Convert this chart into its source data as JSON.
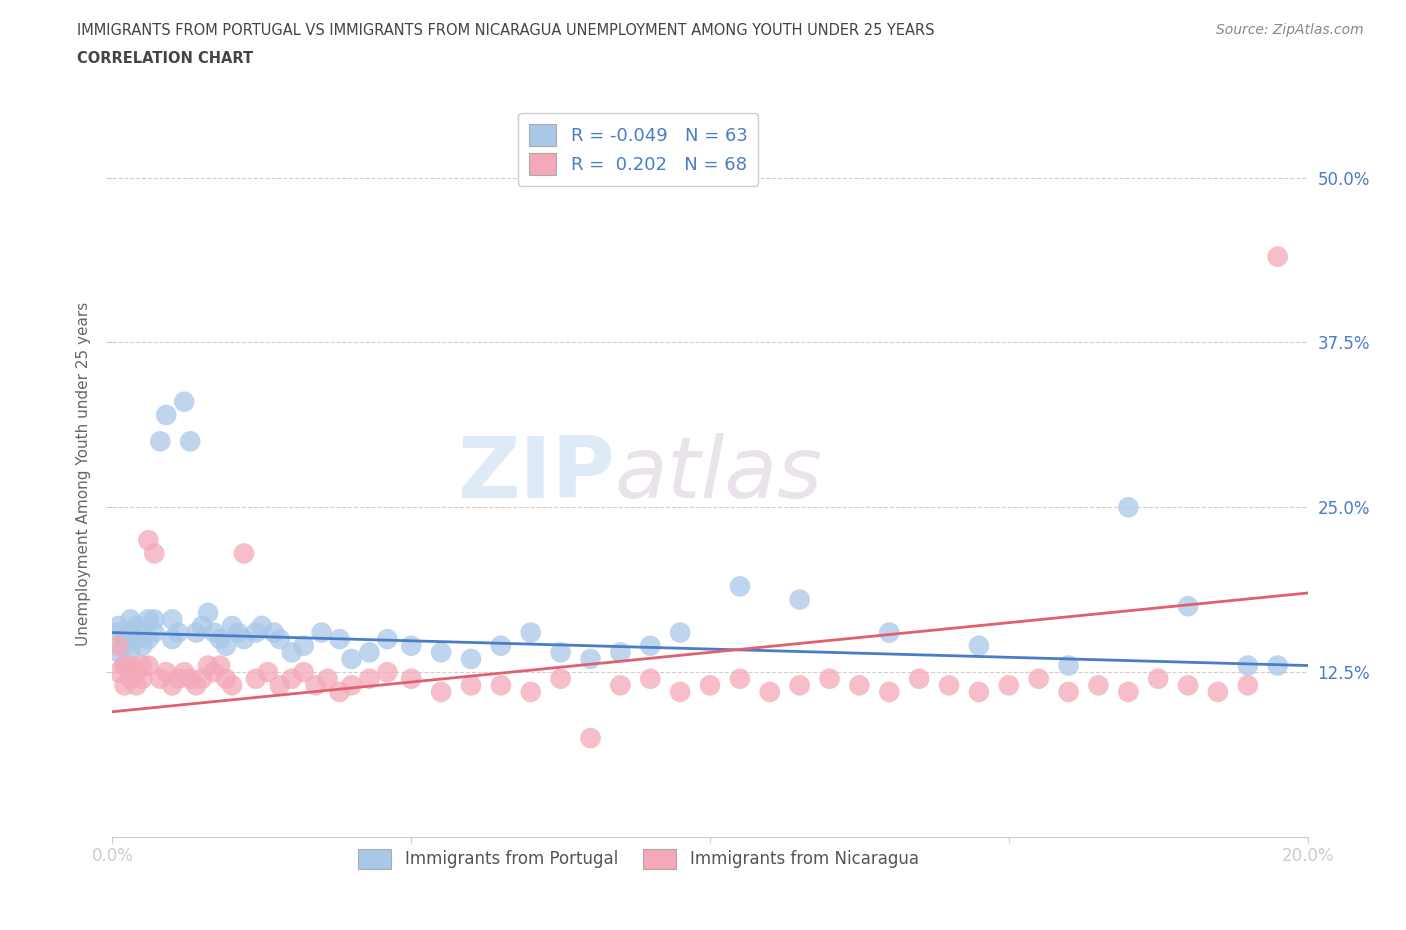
{
  "title_line1": "IMMIGRANTS FROM PORTUGAL VS IMMIGRANTS FROM NICARAGUA UNEMPLOYMENT AMONG YOUTH UNDER 25 YEARS",
  "title_line2": "CORRELATION CHART",
  "source": "Source: ZipAtlas.com",
  "ylabel": "Unemployment Among Youth under 25 years",
  "xlim": [
    0.0,
    0.2
  ],
  "ylim": [
    0.0,
    0.55
  ],
  "ytick_right": [
    0.125,
    0.25,
    0.375,
    0.5
  ],
  "ytick_right_labels": [
    "12.5%",
    "25.0%",
    "37.5%",
    "50.0%"
  ],
  "portugal_color": "#a8c8e8",
  "nicaragua_color": "#f4a8b8",
  "portugal_line_color": "#4a7cc7",
  "nicaragua_line_color": "#e06070",
  "R_portugal": -0.049,
  "N_portugal": 63,
  "R_nicaragua": 0.202,
  "N_nicaragua": 68,
  "legend_portugal": "Immigrants from Portugal",
  "legend_nicaragua": "Immigrants from Nicaragua",
  "watermark_zip": "ZIP",
  "watermark_atlas": "atlas",
  "background_color": "#ffffff",
  "grid_color": "#d0d0d0",
  "title_color": "#555555",
  "label_color": "#4a7cc7",
  "portugal_x": [
    0.001,
    0.001,
    0.001,
    0.002,
    0.002,
    0.002,
    0.003,
    0.003,
    0.003,
    0.004,
    0.004,
    0.005,
    0.005,
    0.006,
    0.006,
    0.007,
    0.007,
    0.008,
    0.009,
    0.01,
    0.01,
    0.011,
    0.012,
    0.013,
    0.014,
    0.015,
    0.016,
    0.017,
    0.018,
    0.019,
    0.02,
    0.021,
    0.022,
    0.024,
    0.025,
    0.027,
    0.028,
    0.03,
    0.032,
    0.035,
    0.038,
    0.04,
    0.043,
    0.046,
    0.05,
    0.055,
    0.06,
    0.065,
    0.07,
    0.075,
    0.08,
    0.085,
    0.09,
    0.095,
    0.105,
    0.115,
    0.13,
    0.145,
    0.16,
    0.17,
    0.18,
    0.19,
    0.195
  ],
  "portugal_y": [
    0.155,
    0.14,
    0.16,
    0.13,
    0.15,
    0.145,
    0.155,
    0.14,
    0.165,
    0.15,
    0.16,
    0.145,
    0.155,
    0.15,
    0.165,
    0.155,
    0.165,
    0.3,
    0.32,
    0.15,
    0.165,
    0.155,
    0.33,
    0.3,
    0.155,
    0.16,
    0.17,
    0.155,
    0.15,
    0.145,
    0.16,
    0.155,
    0.15,
    0.155,
    0.16,
    0.155,
    0.15,
    0.14,
    0.145,
    0.155,
    0.15,
    0.135,
    0.14,
    0.15,
    0.145,
    0.14,
    0.135,
    0.145,
    0.155,
    0.14,
    0.135,
    0.14,
    0.145,
    0.155,
    0.19,
    0.18,
    0.155,
    0.145,
    0.13,
    0.25,
    0.175,
    0.13,
    0.13
  ],
  "nicaragua_x": [
    0.001,
    0.001,
    0.002,
    0.002,
    0.003,
    0.003,
    0.004,
    0.004,
    0.005,
    0.005,
    0.006,
    0.006,
    0.007,
    0.008,
    0.009,
    0.01,
    0.011,
    0.012,
    0.013,
    0.014,
    0.015,
    0.016,
    0.017,
    0.018,
    0.019,
    0.02,
    0.022,
    0.024,
    0.026,
    0.028,
    0.03,
    0.032,
    0.034,
    0.036,
    0.038,
    0.04,
    0.043,
    0.046,
    0.05,
    0.055,
    0.06,
    0.065,
    0.07,
    0.075,
    0.08,
    0.085,
    0.09,
    0.095,
    0.1,
    0.105,
    0.11,
    0.115,
    0.12,
    0.125,
    0.13,
    0.135,
    0.14,
    0.145,
    0.15,
    0.155,
    0.16,
    0.165,
    0.17,
    0.175,
    0.18,
    0.185,
    0.19,
    0.195
  ],
  "nicaragua_y": [
    0.145,
    0.125,
    0.13,
    0.115,
    0.12,
    0.13,
    0.115,
    0.125,
    0.12,
    0.13,
    0.225,
    0.13,
    0.215,
    0.12,
    0.125,
    0.115,
    0.12,
    0.125,
    0.12,
    0.115,
    0.12,
    0.13,
    0.125,
    0.13,
    0.12,
    0.115,
    0.215,
    0.12,
    0.125,
    0.115,
    0.12,
    0.125,
    0.115,
    0.12,
    0.11,
    0.115,
    0.12,
    0.125,
    0.12,
    0.11,
    0.115,
    0.115,
    0.11,
    0.12,
    0.075,
    0.115,
    0.12,
    0.11,
    0.115,
    0.12,
    0.11,
    0.115,
    0.12,
    0.115,
    0.11,
    0.12,
    0.115,
    0.11,
    0.115,
    0.12,
    0.11,
    0.115,
    0.11,
    0.12,
    0.115,
    0.11,
    0.115,
    0.44
  ]
}
